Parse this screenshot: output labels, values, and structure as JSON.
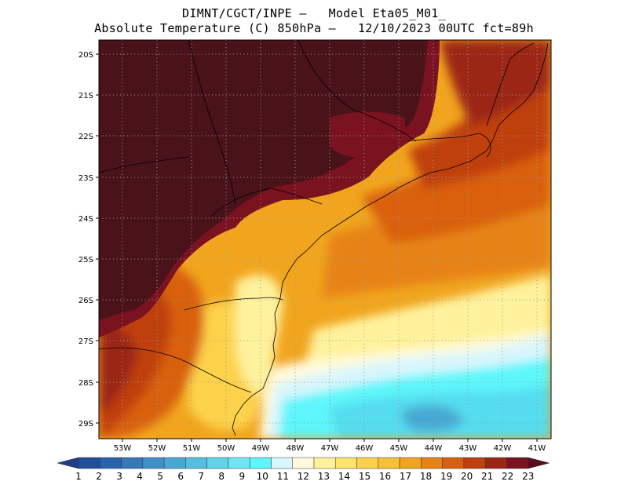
{
  "title_line1": "DIMNT/CGCT/INPE –   Model Eta05_M01_",
  "title_line2": "Absolute Temperature (C) 850hPa –   12/10/2023 00UTC fct=89h",
  "lat_labels": [
    "20S",
    "21S",
    "22S",
    "23S",
    "24S",
    "25S",
    "26S",
    "27S",
    "28S",
    "29S"
  ],
  "lon_labels": [
    "53W",
    "52W",
    "51W",
    "50W",
    "49W",
    "48W",
    "47W",
    "46W",
    "45W",
    "44W",
    "43W",
    "42W",
    "41W"
  ],
  "colorbar": {
    "labels": [
      "1",
      "2",
      "3",
      "4",
      "5",
      "6",
      "7",
      "8",
      "9",
      "10",
      "11",
      "12",
      "13",
      "14",
      "15",
      "16",
      "17",
      "18",
      "19",
      "20",
      "21",
      "22",
      "23"
    ],
    "colors": [
      "#1f3d8a",
      "#1f4e9a",
      "#2a63ad",
      "#3579b8",
      "#3f90c6",
      "#49a8d3",
      "#55bfdf",
      "#60d4ea",
      "#6ee7f4",
      "#5df6fb",
      "#d8f6fd",
      "#fffadc",
      "#fff29c",
      "#ffe46a",
      "#fdd24b",
      "#f7bf36",
      "#f1a51e",
      "#e78313",
      "#d9600c",
      "#c04010",
      "#9c2514",
      "#7a1220",
      "#5c0a20"
    ]
  },
  "map_colors": {
    "ocean_cold": "#55dcef",
    "dark_hot": "#4a1219",
    "frame": "#000000"
  }
}
